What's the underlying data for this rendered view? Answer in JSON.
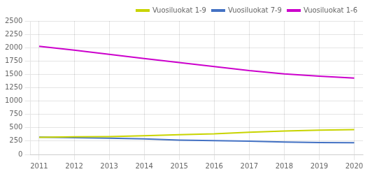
{
  "chart_data": {
    "type": "line",
    "x": [
      2011,
      2012,
      2013,
      2014,
      2015,
      2016,
      2017,
      2018,
      2019,
      2020
    ],
    "series": [
      {
        "name": "Vuosiluokat 1-9",
        "color": "#c8d400",
        "values": [
          320,
          330,
          335,
          350,
          370,
          385,
          415,
          440,
          455,
          465
        ]
      },
      {
        "name": "Vuosiluokat 7-9",
        "color": "#4472c4",
        "values": [
          325,
          315,
          305,
          290,
          268,
          260,
          248,
          232,
          222,
          218
        ]
      },
      {
        "name": "Vuosiluokat 1-6",
        "color": "#cc00cc",
        "values": [
          2025,
          1955,
          1875,
          1795,
          1720,
          1645,
          1570,
          1510,
          1465,
          1430
        ]
      }
    ],
    "xlim": [
      2010.75,
      2020.25
    ],
    "xticks": [
      2011,
      2012,
      2013,
      2014,
      2015,
      2016,
      2017,
      2018,
      2019,
      2020
    ],
    "ylim": [
      0,
      2500
    ],
    "yticks": [
      0,
      250,
      500,
      750,
      1000,
      1250,
      1500,
      1750,
      2000,
      2250,
      2500
    ],
    "grid": true,
    "legend": "upper right"
  }
}
